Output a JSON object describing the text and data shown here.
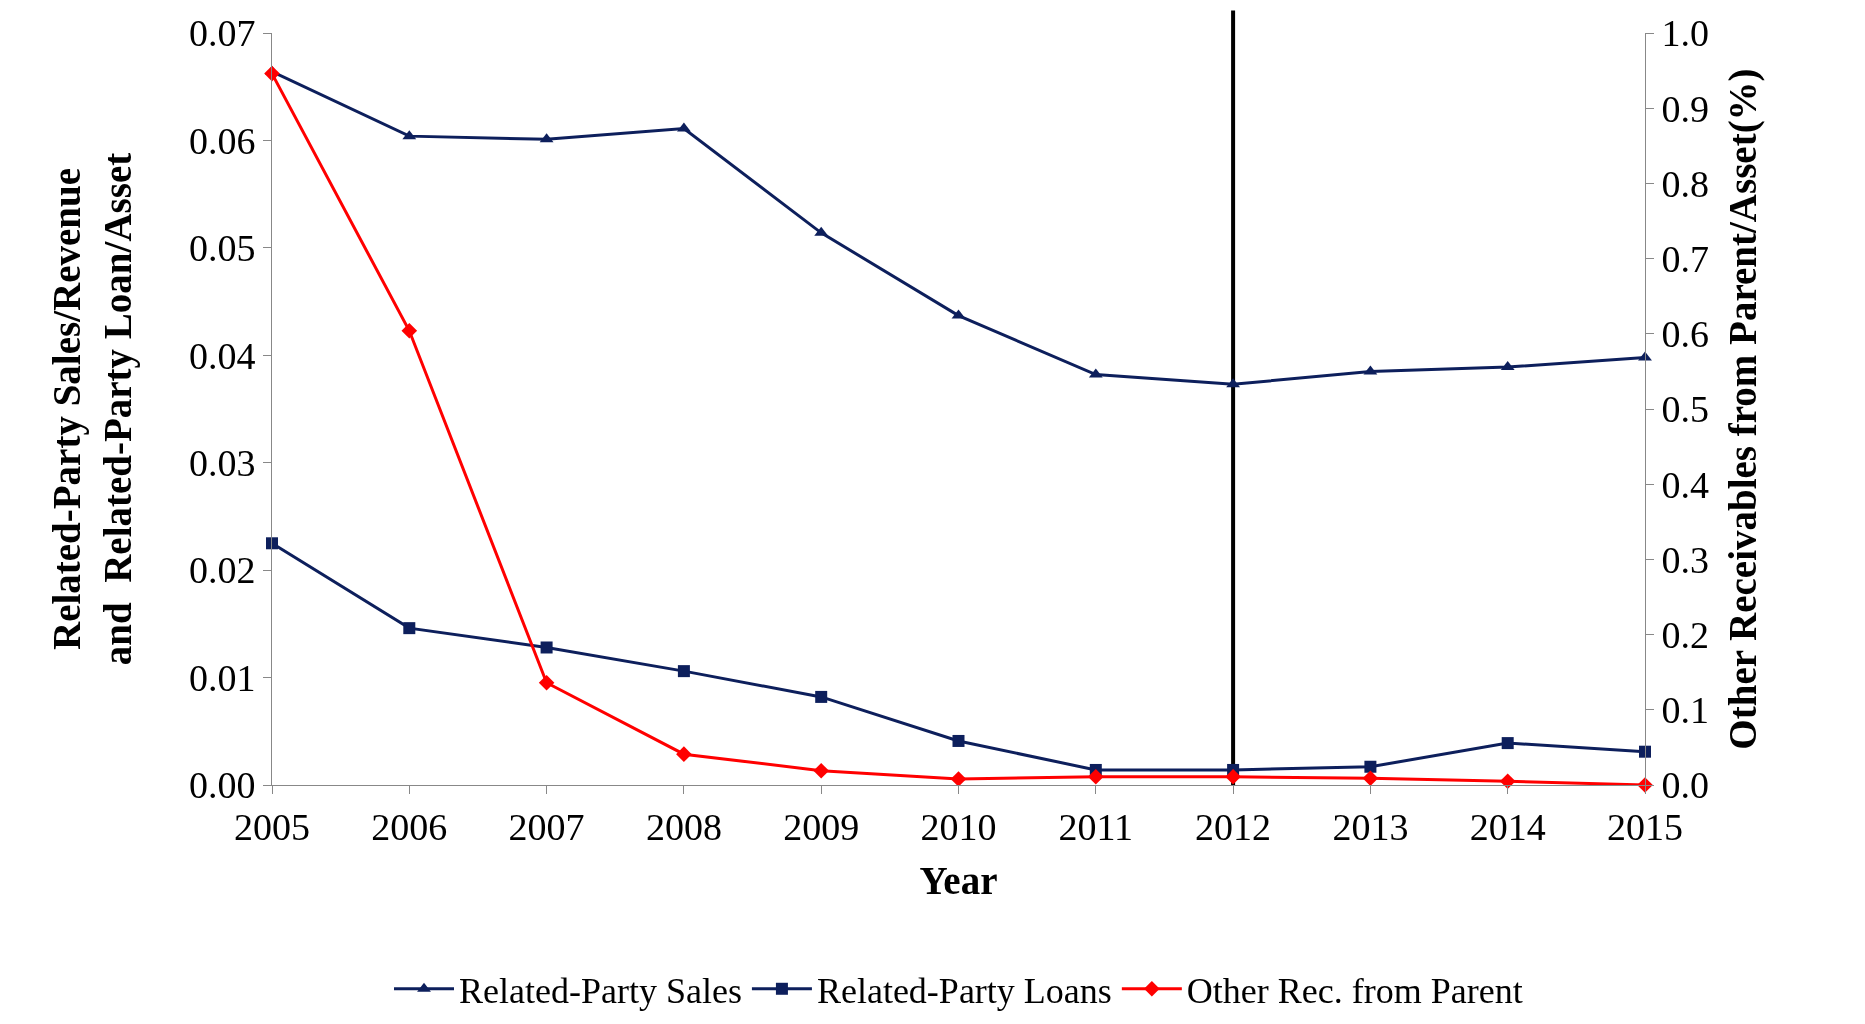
{
  "chart_data": {
    "type": "line",
    "xlabel": "Year",
    "ylabel": "Related-Party Sales/Revenue\nand  Related-Party Loan/Asset",
    "y2label": "Other Receivables from Parent/Asset(%)",
    "x": [
      2005,
      2006,
      2007,
      2008,
      2009,
      2010,
      2011,
      2012,
      2013,
      2014,
      2015
    ],
    "xlim": [
      2005,
      2015
    ],
    "xticks": [
      2005,
      2006,
      2007,
      2008,
      2009,
      2010,
      2011,
      2012,
      2013,
      2014,
      2015
    ],
    "ylim": [
      0,
      0.07
    ],
    "yticks": [
      {
        "value": 0,
        "label": "0.00"
      },
      {
        "value": 0.01,
        "label": "0.01"
      },
      {
        "value": 0.02,
        "label": "0.02"
      },
      {
        "value": 0.03,
        "label": "0.03"
      },
      {
        "value": 0.04,
        "label": "0.04"
      },
      {
        "value": 0.05,
        "label": "0.05"
      },
      {
        "value": 0.06,
        "label": "0.06"
      },
      {
        "value": 0.07,
        "label": "0.07"
      }
    ],
    "y2lim": [
      0,
      1
    ],
    "y2ticks": [
      {
        "value": 0,
        "label": "0.0"
      },
      0.1,
      0.2,
      0.3,
      0.4,
      0.5,
      0.6,
      0.7,
      0.8,
      0.9,
      {
        "value": 1,
        "label": "1.0"
      }
    ],
    "grid": false,
    "legend": "bottom",
    "line_style": "solid",
    "ref_lines": [
      {
        "axis": "x",
        "value": 2012,
        "color": "#000000"
      }
    ],
    "series": [
      {
        "name": "Related-Party Sales",
        "color": "#0d1f5c",
        "marker": "triangle",
        "values": [
          0.0664,
          0.0604,
          0.0601,
          0.0611,
          0.0514,
          0.0437,
          0.0382,
          0.0373,
          0.0385,
          0.0389,
          0.0398
        ]
      },
      {
        "name": "Related-Party Loans",
        "color": "#0d1f5c",
        "marker": "square",
        "values": [
          0.0225,
          0.0146,
          0.0128,
          0.0106,
          0.0082,
          0.0041,
          0.0014,
          0.0014,
          0.0017,
          0.0039,
          0.0031
        ]
      },
      {
        "name": "Other Rec. from Parent",
        "color": "#ff0000",
        "marker": "diamond",
        "axis": "y2",
        "values": [
          0.946,
          0.604,
          0.136,
          0.041,
          0.019,
          0.008,
          0.011,
          0.011,
          0.009,
          0.005,
          0.0
        ]
      }
    ]
  }
}
